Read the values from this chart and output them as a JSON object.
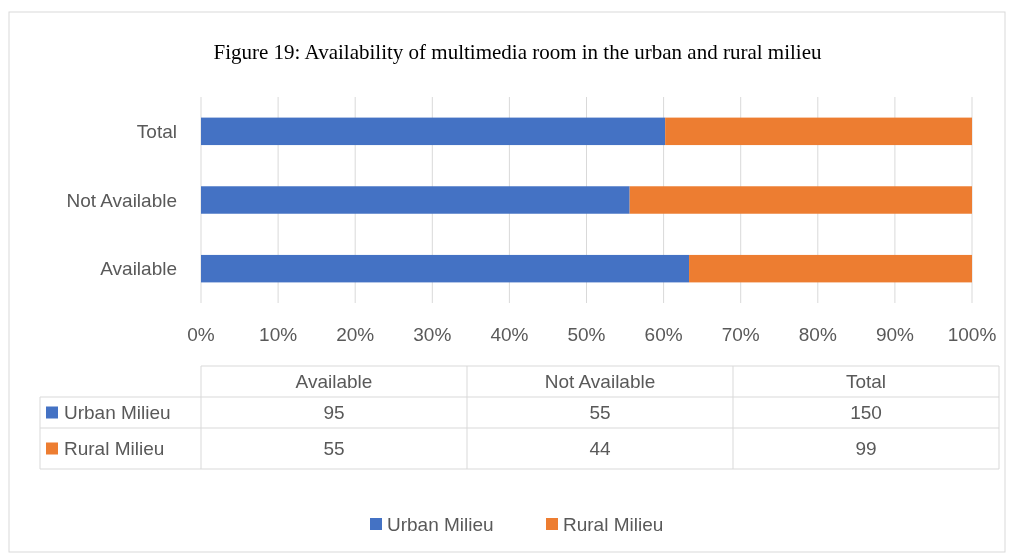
{
  "chart_data": {
    "type": "bar",
    "title": "Figure 19: Availability of multimedia room in the urban and rural milieu",
    "orientation": "horizontal",
    "stacked": true,
    "categories": [
      "Total",
      "Not Available",
      "Available"
    ],
    "series": [
      {
        "name": "Urban Milieu",
        "color": "#4472c4",
        "values": [
          60.2,
          55.6,
          63.3
        ]
      },
      {
        "name": "Rural Milieu",
        "color": "#ed7d31",
        "values": [
          39.8,
          44.4,
          36.7
        ]
      }
    ],
    "annotations": [
      "95",
      "55",
      "150",
      "55",
      "44",
      "99"
    ],
    "xlim": [
      0,
      100
    ],
    "xticks": [
      {
        "value": 0,
        "label": "0%"
      },
      {
        "value": 10,
        "label": "10%"
      },
      {
        "value": 20,
        "label": "20%"
      },
      {
        "value": 30,
        "label": "30%"
      },
      {
        "value": 40,
        "label": "40%"
      },
      {
        "value": 50,
        "label": "50%"
      },
      {
        "value": 60,
        "label": "60%"
      },
      {
        "value": 70,
        "label": "70%"
      },
      {
        "value": 80,
        "label": "80%"
      },
      {
        "value": 90,
        "label": "90%"
      },
      {
        "value": 100,
        "label": "100%"
      }
    ],
    "grid": "x",
    "legend": "bottom"
  }
}
